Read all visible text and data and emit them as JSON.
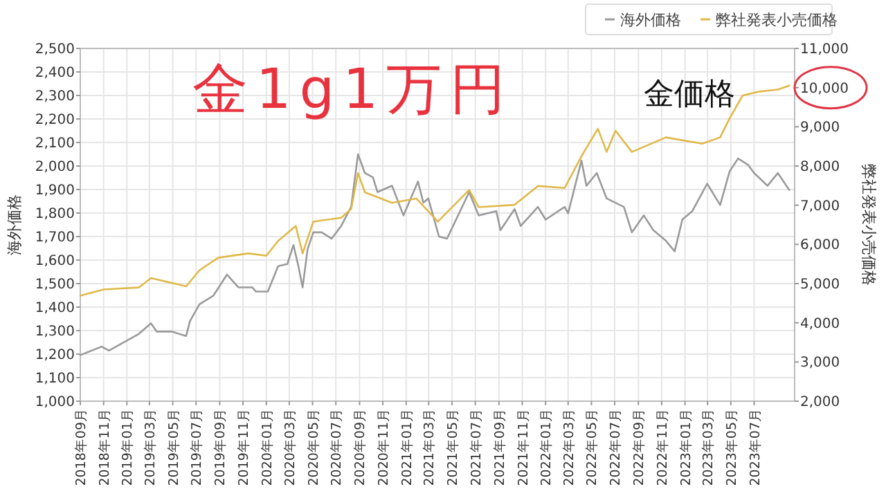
{
  "chart_data": {
    "type": "line",
    "title": "金1g1万円",
    "ylabel": "海外価格",
    "y2label": "弊社発表小売価格",
    "annotations": [
      "金価格"
    ],
    "xlim": [
      "2018-09-01",
      "2023-10-15"
    ],
    "xticks": [
      {
        "value": "2018-09",
        "label": "2018年09月"
      },
      {
        "value": "2018-11",
        "label": "2018年11月"
      },
      {
        "value": "2019-01",
        "label": "2019年01月"
      },
      {
        "value": "2019-03",
        "label": "2019年03月"
      },
      {
        "value": "2019-05",
        "label": "2019年05月"
      },
      {
        "value": "2019-07",
        "label": "2019年07月"
      },
      {
        "value": "2019-09",
        "label": "2019年09月"
      },
      {
        "value": "2019-11",
        "label": "2019年11月"
      },
      {
        "value": "2020-01",
        "label": "2020年01月"
      },
      {
        "value": "2020-03",
        "label": "2020年03月"
      },
      {
        "value": "2020-05",
        "label": "2020年05月"
      },
      {
        "value": "2020-07",
        "label": "2020年07月"
      },
      {
        "value": "2020-09",
        "label": "2020年09月"
      },
      {
        "value": "2020-11",
        "label": "2020年11月"
      },
      {
        "value": "2021-01",
        "label": "2021年01月"
      },
      {
        "value": "2021-03",
        "label": "2021年03月"
      },
      {
        "value": "2021-05",
        "label": "2021年05月"
      },
      {
        "value": "2021-07",
        "label": "2021年07月"
      },
      {
        "value": "2021-09",
        "label": "2021年09月"
      },
      {
        "value": "2021-11",
        "label": "2021年11月"
      },
      {
        "value": "2022-01",
        "label": "2022年01月"
      },
      {
        "value": "2022-03",
        "label": "2022年03月"
      },
      {
        "value": "2022-05",
        "label": "2022年05月"
      },
      {
        "value": "2022-07",
        "label": "2022年07月"
      },
      {
        "value": "2022-09",
        "label": "2022年09月"
      },
      {
        "value": "2022-11",
        "label": "2022年11月"
      },
      {
        "value": "2023-01",
        "label": "2023年01月"
      },
      {
        "value": "2023-03",
        "label": "2023年03月"
      },
      {
        "value": "2023-05",
        "label": "2023年05月"
      },
      {
        "value": "2023-07",
        "label": "2023年07月"
      }
    ],
    "ylim": [
      1000,
      2500
    ],
    "yticks": [
      {
        "value": 1000,
        "label": "1,000"
      },
      {
        "value": 1100,
        "label": "1,100"
      },
      {
        "value": 1200,
        "label": "1,200"
      },
      {
        "value": 1300,
        "label": "1,300"
      },
      {
        "value": 1400,
        "label": "1,400"
      },
      {
        "value": 1500,
        "label": "1,500"
      },
      {
        "value": 1600,
        "label": "1,600"
      },
      {
        "value": 1700,
        "label": "1,700"
      },
      {
        "value": 1800,
        "label": "1,800"
      },
      {
        "value": 1900,
        "label": "1,900"
      },
      {
        "value": 2000,
        "label": "2,000"
      },
      {
        "value": 2100,
        "label": "2,100"
      },
      {
        "value": 2200,
        "label": "2,200"
      },
      {
        "value": 2300,
        "label": "2,300"
      },
      {
        "value": 2400,
        "label": "2,400"
      },
      {
        "value": 2500,
        "label": "2,500"
      }
    ],
    "y2lim": [
      2000,
      11000
    ],
    "y2ticks": [
      {
        "value": 2000,
        "label": "2,000"
      },
      {
        "value": 3000,
        "label": "3,000"
      },
      {
        "value": 4000,
        "label": "4,000"
      },
      {
        "value": 5000,
        "label": "5,000"
      },
      {
        "value": 6000,
        "label": "6,000"
      },
      {
        "value": 7000,
        "label": "7,000"
      },
      {
        "value": 8000,
        "label": "8,000"
      },
      {
        "value": 9000,
        "label": "9,000"
      },
      {
        "value": 10000,
        "label": "10,000"
      },
      {
        "value": 11000,
        "label": "11,000"
      }
    ],
    "grid": true,
    "legend": "top right",
    "marker": "none",
    "line_style": "solid",
    "series": [
      {
        "name": "海外価格",
        "color": "#9a9a9a",
        "x": [
          "2018-09-01",
          "2018-10-27",
          "2018-11-15",
          "2019-02-01",
          "2019-03-05",
          "2019-03-20",
          "2019-04-28",
          "2019-06-05",
          "2019-06-15",
          "2019-07-10",
          "2019-08-15",
          "2019-09-20",
          "2019-10-20",
          "2019-11-25",
          "2019-12-05",
          "2020-01-05",
          "2020-02-01",
          "2020-02-25",
          "2020-03-12",
          "2020-03-25",
          "2020-04-05",
          "2020-04-18",
          "2020-05-03",
          "2020-05-25",
          "2020-06-20",
          "2020-07-15",
          "2020-08-10",
          "2020-08-28",
          "2020-09-15",
          "2020-10-06",
          "2020-10-18",
          "2020-11-25",
          "2020-12-25",
          "2021-02-01",
          "2021-02-15",
          "2021-02-28",
          "2021-03-28",
          "2021-04-18",
          "2021-06-15",
          "2021-07-10",
          "2021-08-25",
          "2021-09-05",
          "2021-10-12",
          "2021-10-28",
          "2021-12-12",
          "2022-01-01",
          "2022-02-20",
          "2022-03-01",
          "2022-04-05",
          "2022-04-18",
          "2022-05-15",
          "2022-06-10",
          "2022-07-25",
          "2022-08-15",
          "2022-09-15",
          "2022-10-10",
          "2022-11-12",
          "2022-12-05",
          "2022-12-25",
          "2023-01-20",
          "2023-02-28",
          "2023-04-03",
          "2023-04-28",
          "2023-05-20",
          "2023-06-15",
          "2023-07-01",
          "2023-08-05",
          "2023-09-01",
          "2023-10-01"
        ],
        "values": [
          1196,
          1232,
          1215,
          1286,
          1331,
          1296,
          1296,
          1277,
          1340,
          1412,
          1448,
          1538,
          1484,
          1484,
          1466,
          1466,
          1574,
          1583,
          1664,
          1574,
          1484,
          1646,
          1718,
          1718,
          1691,
          1745,
          1826,
          2050,
          1970,
          1952,
          1889,
          1916,
          1790,
          1934,
          1844,
          1862,
          1700,
          1691,
          1889,
          1790,
          1808,
          1727,
          1817,
          1745,
          1826,
          1772,
          1826,
          1799,
          2023,
          1916,
          1970,
          1862,
          1826,
          1718,
          1790,
          1727,
          1682,
          1637,
          1772,
          1808,
          1925,
          1834,
          1978,
          2032,
          2005,
          1970,
          1916,
          1970,
          1898
        ]
      },
      {
        "name": "弊社発表小売価格",
        "color": "#e0b84a",
        "axis": "y2",
        "x": [
          "2018-09-01",
          "2018-11-01",
          "2019-02-01",
          "2019-03-05",
          "2019-06-05",
          "2019-07-10",
          "2019-08-28",
          "2019-11-15",
          "2020-01-01",
          "2020-02-01",
          "2020-03-18",
          "2020-04-05",
          "2020-05-03",
          "2020-07-15",
          "2020-08-10",
          "2020-08-28",
          "2020-09-15",
          "2020-11-25",
          "2021-01-28",
          "2021-03-25",
          "2021-04-15",
          "2021-06-15",
          "2021-07-10",
          "2021-10-12",
          "2021-12-12",
          "2022-02-20",
          "2022-04-05",
          "2022-05-18",
          "2022-06-10",
          "2022-07-03",
          "2022-08-15",
          "2022-11-12",
          "2023-02-15",
          "2023-04-03",
          "2023-04-28",
          "2023-06-01",
          "2023-07-15",
          "2023-09-01",
          "2023-10-01"
        ],
        "values": [
          4690,
          4850,
          4900,
          5140,
          4930,
          5340,
          5660,
          5770,
          5710,
          6090,
          6470,
          5770,
          6580,
          6680,
          6900,
          7820,
          7330,
          7060,
          7170,
          6580,
          6790,
          7390,
          6950,
          7010,
          7490,
          7440,
          8250,
          8950,
          8360,
          8900,
          8360,
          8730,
          8570,
          8730,
          9220,
          9800,
          9900,
          9950,
          10050
        ]
      }
    ]
  }
}
